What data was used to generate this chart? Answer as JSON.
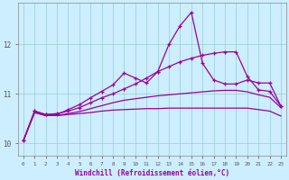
{
  "xlabel": "Windchill (Refroidissement éolien,°C)",
  "bg_color": "#cceeff",
  "grid_color": "#99cccc",
  "line_color": "#990099",
  "xlim": [
    -0.5,
    23.5
  ],
  "ylim": [
    9.75,
    12.85
  ],
  "xticks": [
    0,
    1,
    2,
    3,
    4,
    5,
    6,
    7,
    8,
    9,
    10,
    11,
    12,
    13,
    14,
    15,
    16,
    17,
    18,
    19,
    20,
    21,
    22,
    23
  ],
  "yticks": [
    10,
    11,
    12
  ],
  "hours": [
    0,
    1,
    2,
    3,
    4,
    5,
    6,
    7,
    8,
    9,
    10,
    11,
    12,
    13,
    14,
    15,
    16,
    17,
    18,
    19,
    20,
    21,
    22,
    23
  ],
  "line1": [
    10.05,
    10.65,
    10.58,
    10.58,
    10.68,
    10.78,
    10.92,
    11.05,
    11.18,
    11.42,
    11.32,
    11.22,
    11.45,
    12.0,
    12.38,
    12.65,
    11.62,
    11.28,
    11.2,
    11.2,
    11.28,
    11.22,
    11.22,
    10.75
  ],
  "line2": [
    10.05,
    10.65,
    10.58,
    10.6,
    10.65,
    10.72,
    10.82,
    10.92,
    11.0,
    11.1,
    11.2,
    11.32,
    11.45,
    11.55,
    11.65,
    11.72,
    11.78,
    11.82,
    11.85,
    11.85,
    11.35,
    11.08,
    11.05,
    10.75
  ],
  "line3": [
    10.05,
    10.62,
    10.56,
    10.56,
    10.6,
    10.64,
    10.7,
    10.76,
    10.82,
    10.87,
    10.9,
    10.93,
    10.96,
    10.98,
    11.0,
    11.02,
    11.04,
    11.06,
    11.07,
    11.07,
    11.04,
    10.98,
    10.93,
    10.72
  ],
  "line4": [
    10.05,
    10.62,
    10.56,
    10.56,
    10.58,
    10.6,
    10.62,
    10.65,
    10.67,
    10.68,
    10.69,
    10.7,
    10.7,
    10.71,
    10.71,
    10.71,
    10.71,
    10.71,
    10.71,
    10.71,
    10.71,
    10.68,
    10.65,
    10.55
  ]
}
